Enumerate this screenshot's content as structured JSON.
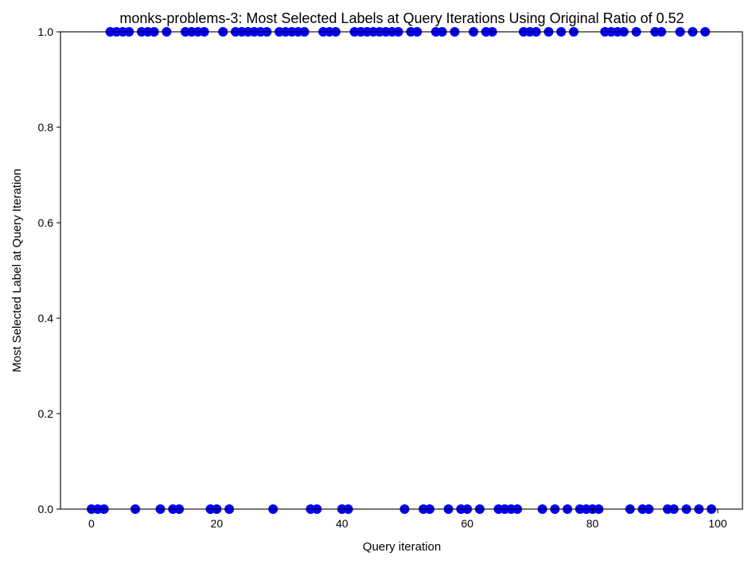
{
  "chart_data": {
    "type": "scatter",
    "title": "monks-problems-3: Most Selected Labels at Query Iterations Using Original Ratio of 0.52",
    "xlabel": "Query iteration",
    "ylabel": "Most Selected Label at Query Iteration",
    "xlim": [
      -4.95,
      103.95
    ],
    "ylim": [
      0,
      1
    ],
    "xticks": [
      "0",
      "20",
      "40",
      "60",
      "80",
      "100"
    ],
    "xtick_values": [
      0,
      20,
      40,
      60,
      80,
      100
    ],
    "yticks": [
      "0.0",
      "0.2",
      "0.4",
      "0.6",
      "0.8",
      "1.0"
    ],
    "ytick_values": [
      0,
      0.2,
      0.4,
      0.6,
      0.8,
      1.0
    ],
    "grid": false,
    "marker_color": "#0000ff",
    "series": [
      {
        "x": [
          0,
          1,
          2,
          3,
          4,
          5,
          6,
          7,
          8,
          9,
          10,
          11,
          12,
          13,
          14,
          15,
          16,
          17,
          18,
          19,
          20,
          21,
          22,
          23,
          24,
          25,
          26,
          27,
          28,
          29,
          30,
          31,
          32,
          33,
          34,
          35,
          36,
          37,
          38,
          39,
          40,
          41,
          42,
          43,
          44,
          45,
          46,
          47,
          48,
          49,
          50,
          51,
          52,
          53,
          54,
          55,
          56,
          57,
          58,
          59,
          60,
          61,
          62,
          63,
          64,
          65,
          66,
          67,
          68,
          69,
          70,
          71,
          72,
          73,
          74,
          75,
          76,
          77,
          78,
          79,
          80,
          81,
          82,
          83,
          84,
          85,
          86,
          87,
          88,
          89,
          90,
          91,
          92,
          93,
          94,
          95,
          96,
          97,
          98,
          99
        ],
        "y": [
          0,
          0,
          0,
          1,
          1,
          1,
          1,
          0,
          1,
          1,
          1,
          0,
          1,
          0,
          0,
          1,
          1,
          1,
          1,
          0,
          0,
          1,
          0,
          1,
          1,
          1,
          1,
          1,
          1,
          0,
          1,
          1,
          1,
          1,
          1,
          0,
          0,
          1,
          1,
          1,
          0,
          0,
          1,
          1,
          1,
          1,
          1,
          1,
          1,
          1,
          0,
          1,
          1,
          0,
          0,
          1,
          1,
          0,
          1,
          0,
          0,
          1,
          0,
          1,
          1,
          0,
          0,
          0,
          0,
          1,
          1,
          1,
          0,
          1,
          0,
          1,
          0,
          1,
          0,
          0,
          0,
          0,
          1,
          1,
          1,
          1,
          0,
          1,
          0,
          0,
          1,
          1,
          0,
          0,
          1,
          0,
          1,
          0,
          1,
          0
        ]
      }
    ]
  }
}
